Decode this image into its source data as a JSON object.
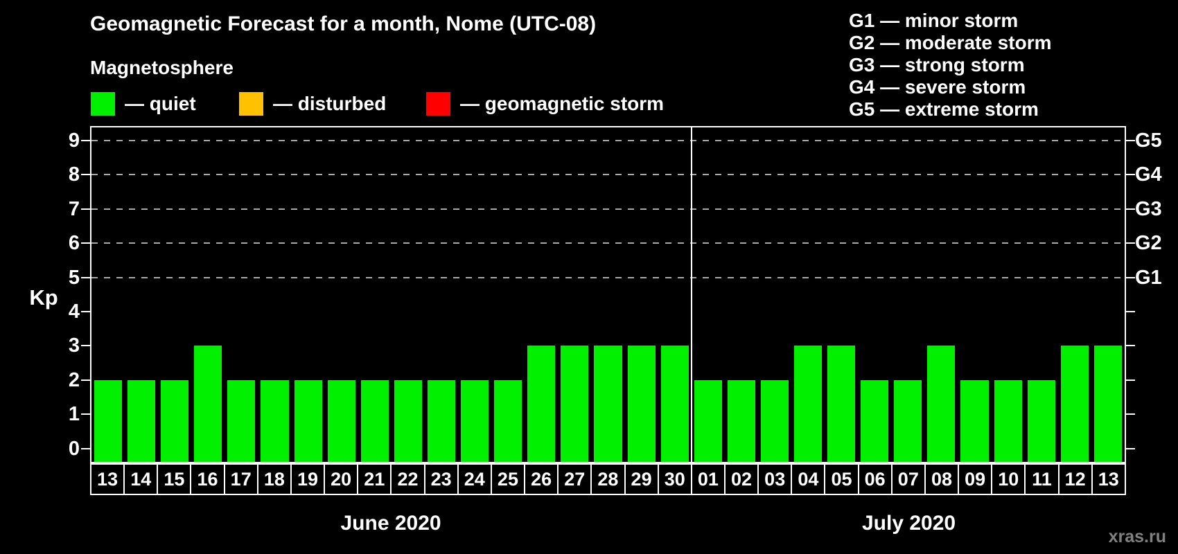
{
  "subtitle": "Magnetosphere",
  "legend": {
    "items": [
      {
        "name": "quiet",
        "label": "— quiet",
        "color": "#00f000"
      },
      {
        "name": "disturbed",
        "label": "— disturbed",
        "color": "#ffc100"
      },
      {
        "name": "storm",
        "label": "— geomagnetic storm",
        "color": "#ff0000"
      }
    ]
  },
  "g_legend": {
    "items": [
      "G1 — minor storm",
      "G2 — moderate storm",
      "G3 — strong storm",
      "G4 — severe storm",
      "G5 — extreme storm"
    ]
  },
  "watermark": "xras.ru",
  "chart_data": {
    "type": "bar",
    "title": "Geomagnetic Forecast for a month, Nome (UTC-08)",
    "ylabel": "Kp",
    "ylim": [
      0,
      9
    ],
    "y_ticks": [
      0,
      1,
      2,
      3,
      4,
      5,
      6,
      7,
      8,
      9
    ],
    "grid_levels": [
      5,
      6,
      7,
      8,
      9
    ],
    "grid_style": "dashed horizontal lines at storm levels only",
    "right_axis": {
      "5": "G1",
      "6": "G2",
      "7": "G3",
      "8": "G4",
      "9": "G5"
    },
    "bar_state": "quiet",
    "legend_position": "top-left",
    "months": [
      {
        "label": "June 2020",
        "days": [
          "13",
          "14",
          "15",
          "16",
          "17",
          "18",
          "19",
          "20",
          "21",
          "22",
          "23",
          "24",
          "25",
          "26",
          "27",
          "28",
          "29",
          "30"
        ],
        "values": [
          2,
          2,
          2,
          3,
          2,
          2,
          2,
          2,
          2,
          2,
          2,
          2,
          2,
          3,
          3,
          3,
          3,
          3
        ]
      },
      {
        "label": "July 2020",
        "days": [
          "01",
          "02",
          "03",
          "04",
          "05",
          "06",
          "07",
          "08",
          "09",
          "10",
          "11",
          "12",
          "13"
        ],
        "values": [
          2,
          2,
          2,
          3,
          3,
          2,
          2,
          3,
          2,
          2,
          2,
          3,
          3
        ]
      }
    ]
  }
}
